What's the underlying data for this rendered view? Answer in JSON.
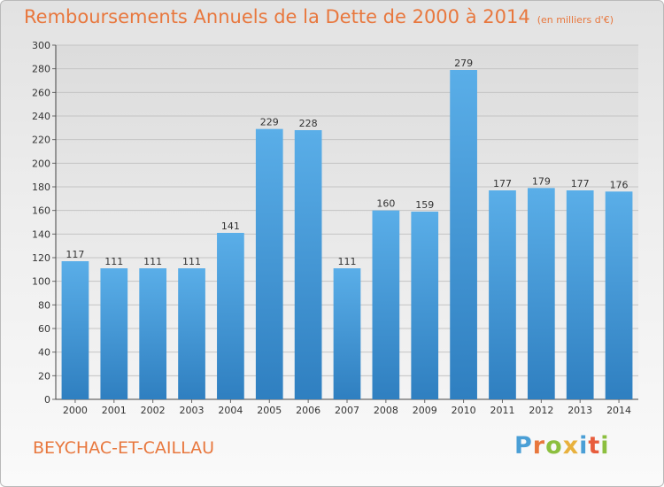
{
  "title": "Remboursements Annuels de la Dette de 2000 à 2014",
  "unit": "(en milliers d'€)",
  "town": "BEYCHAC-ET-CAILLAU",
  "logo": [
    "P",
    "r",
    "o",
    "x",
    "i",
    "t",
    "i"
  ],
  "colors": {
    "bar": "#3d8fd0",
    "title": "#e8773d"
  },
  "chart_data": {
    "type": "bar",
    "categories": [
      "2000",
      "2001",
      "2002",
      "2003",
      "2004",
      "2005",
      "2006",
      "2007",
      "2008",
      "2009",
      "2010",
      "2011",
      "2012",
      "2013",
      "2014"
    ],
    "values": [
      117,
      111,
      111,
      111,
      141,
      229,
      228,
      111,
      160,
      159,
      279,
      177,
      179,
      177,
      176
    ],
    "ylim": [
      0,
      300
    ],
    "yticks": [
      0,
      20,
      40,
      60,
      80,
      100,
      120,
      140,
      160,
      180,
      200,
      220,
      240,
      260,
      280,
      300
    ],
    "grid": true
  }
}
